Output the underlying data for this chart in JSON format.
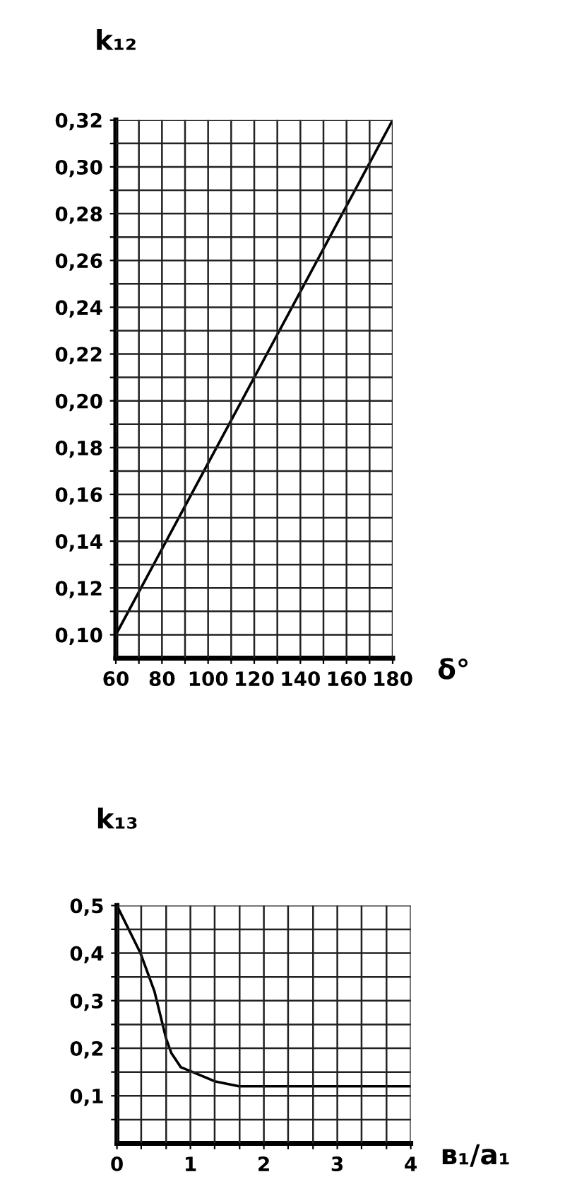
{
  "chart_data": [
    {
      "type": "line",
      "xlabel": "δ°",
      "ylabel": "k₁₂",
      "grid": true,
      "marker": "none",
      "line_style": "solid",
      "x": [
        60,
        180
      ],
      "series": [
        {
          "color": "#000000",
          "values": [
            0.1,
            0.32
          ]
        }
      ],
      "xlim": [
        60,
        180
      ],
      "ylim": [
        0.09,
        0.32
      ],
      "xticks": [
        60,
        {
          "value": 70,
          "label": null
        },
        80,
        {
          "value": 90,
          "label": null
        },
        100,
        {
          "value": 110,
          "label": null
        },
        120,
        {
          "value": 130,
          "label": null
        },
        140,
        {
          "value": 150,
          "label": null
        },
        160,
        {
          "value": 170,
          "label": null
        },
        180
      ],
      "yticks": [
        {
          "value": 0.1,
          "label": "0,10"
        },
        {
          "value": 0.11,
          "label": null
        },
        {
          "value": 0.12,
          "label": "0,12"
        },
        {
          "value": 0.13,
          "label": null
        },
        {
          "value": 0.14,
          "label": "0,14"
        },
        {
          "value": 0.15,
          "label": null
        },
        {
          "value": 0.16,
          "label": "0,16"
        },
        {
          "value": 0.17,
          "label": null
        },
        {
          "value": 0.18,
          "label": "0,18"
        },
        {
          "value": 0.19,
          "label": null
        },
        {
          "value": 0.2,
          "label": "0,20"
        },
        {
          "value": 0.21,
          "label": null
        },
        {
          "value": 0.22,
          "label": "0,22"
        },
        {
          "value": 0.23,
          "label": null
        },
        {
          "value": 0.24,
          "label": "0,24"
        },
        {
          "value": 0.25,
          "label": null
        },
        {
          "value": 0.26,
          "label": "0,26"
        },
        {
          "value": 0.27,
          "label": null
        },
        {
          "value": 0.28,
          "label": "0,28"
        },
        {
          "value": 0.29,
          "label": null
        },
        {
          "value": 0.3,
          "label": "0,30"
        },
        {
          "value": 0.31,
          "label": null
        },
        {
          "value": 0.32,
          "label": "0,32"
        }
      ]
    },
    {
      "type": "line",
      "xlabel": "в₁/a₁",
      "ylabel": "k₁₃",
      "grid": true,
      "marker": "none",
      "line_style": "solid",
      "x": [
        0,
        0.32,
        0.51,
        0.67,
        0.74,
        0.87,
        1.03,
        1.34,
        1.66,
        4
      ],
      "series": [
        {
          "color": "#000000",
          "values": [
            0.5,
            0.4,
            0.32,
            0.22,
            0.19,
            0.16,
            0.15,
            0.13,
            0.12,
            0.12
          ]
        }
      ],
      "xlim": [
        0,
        4
      ],
      "ylim": [
        0,
        0.5
      ],
      "xticks": [
        0,
        {
          "value": 0.33,
          "label": null
        },
        {
          "value": 0.67,
          "label": null
        },
        1,
        {
          "value": 1.33,
          "label": null
        },
        {
          "value": 1.67,
          "label": null
        },
        2,
        {
          "value": 2.33,
          "label": null
        },
        {
          "value": 2.67,
          "label": null
        },
        3,
        {
          "value": 3.33,
          "label": null
        },
        {
          "value": 3.67,
          "label": null
        },
        4
      ],
      "yticks": [
        {
          "value": 0.05,
          "label": null
        },
        {
          "value": 0.1,
          "label": "0,1"
        },
        {
          "value": 0.15,
          "label": null
        },
        {
          "value": 0.2,
          "label": "0,2"
        },
        {
          "value": 0.25,
          "label": null
        },
        {
          "value": 0.3,
          "label": "0,3"
        },
        {
          "value": 0.35,
          "label": null
        },
        {
          "value": 0.4,
          "label": "0,4"
        },
        {
          "value": 0.45,
          "label": null
        },
        {
          "value": 0.5,
          "label": "0,5"
        }
      ]
    }
  ]
}
